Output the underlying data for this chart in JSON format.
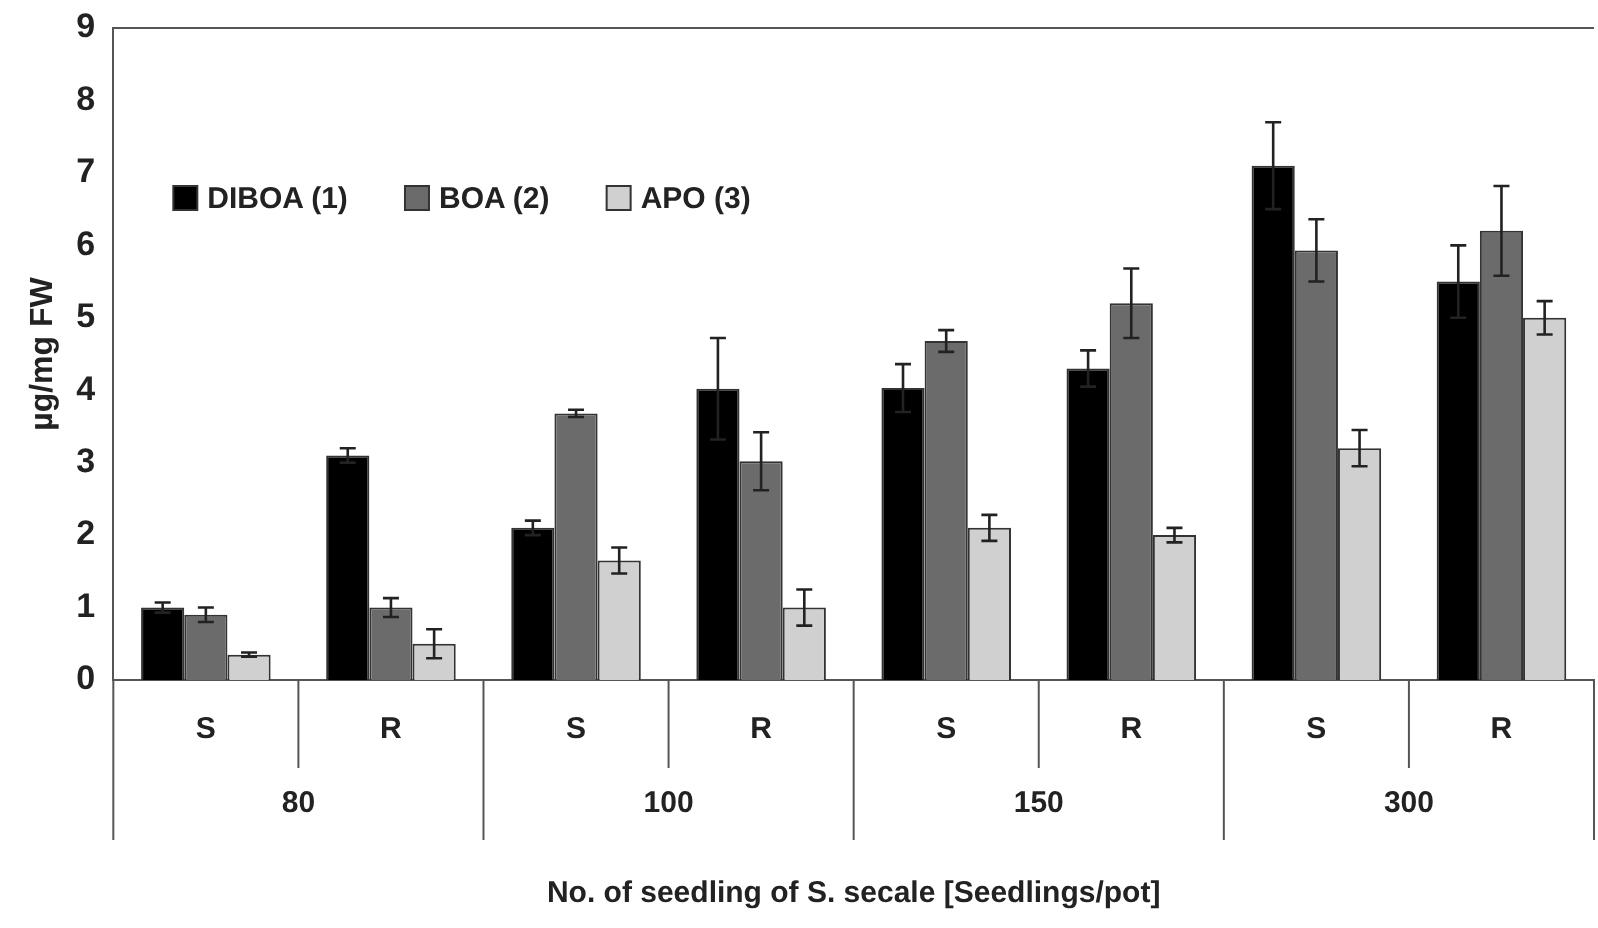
{
  "chart_data": {
    "type": "bar",
    "xlabel": "No. of seedling of S. secale [Seedlings/pot]",
    "ylabel": "µg/mg FW",
    "categories": [
      "S",
      "R",
      "S",
      "R",
      "S",
      "R",
      "S",
      "R"
    ],
    "annotations": [
      "80",
      "100",
      "150",
      "300"
    ],
    "series": [
      {
        "name": "DIBOA (1)",
        "color": "#000000",
        "values": [
          1.0,
          3.1,
          2.1,
          4.02,
          4.03,
          4.3,
          7.1,
          5.5
        ],
        "errors": [
          0.07,
          0.1,
          0.1,
          0.7,
          0.33,
          0.25,
          0.6,
          0.5
        ]
      },
      {
        "name": "BOA (2)",
        "color": "#6b6b6b",
        "values": [
          0.9,
          1.0,
          3.68,
          3.02,
          4.68,
          5.2,
          5.93,
          6.2
        ],
        "errors": [
          0.1,
          0.13,
          0.05,
          0.4,
          0.15,
          0.48,
          0.43,
          0.62
        ]
      },
      {
        "name": "APO (3)",
        "color": "#d0d0d0",
        "values": [
          0.35,
          0.5,
          1.65,
          1.0,
          2.1,
          2.0,
          3.2,
          5.0
        ],
        "errors": [
          0.03,
          0.2,
          0.18,
          0.25,
          0.18,
          0.1,
          0.25,
          0.23
        ]
      }
    ],
    "ylim": [
      0,
      9
    ],
    "yticks": [
      0,
      1,
      2,
      3,
      4,
      5,
      6,
      7,
      8,
      9
    ],
    "grid": false,
    "legend": "top left"
  }
}
